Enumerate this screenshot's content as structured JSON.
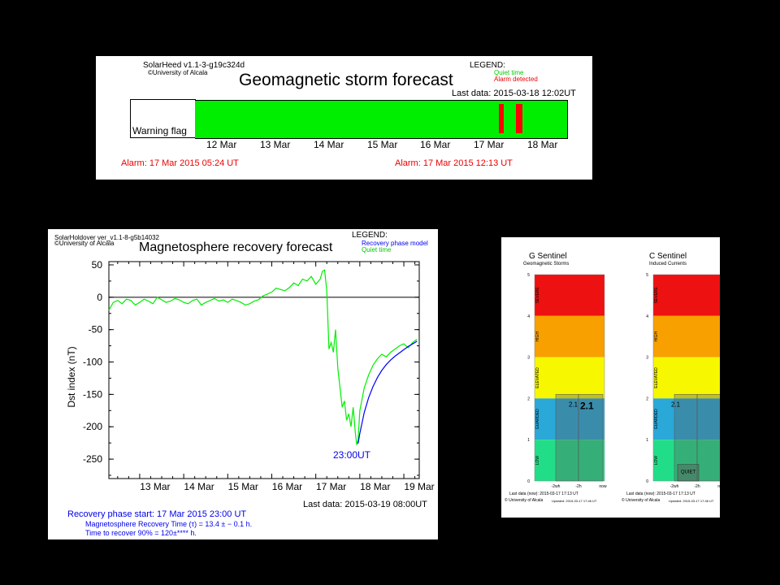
{
  "panel1": {
    "software": "SolarHeed v1.1-3-g19c324d",
    "copyright": "©University of Alcala",
    "title": "Geomagnetic storm forecast",
    "legend_title": "LEGEND:",
    "legend_quiet": "Quiet time",
    "legend_alarm": "Alarm detected",
    "last_data": "Last data: 2015-03-18 12:02UT",
    "row_label": "Warning flag",
    "dates": [
      "12 Mar",
      "13 Mar",
      "14 Mar",
      "15 Mar",
      "16 Mar",
      "17 Mar",
      "18 Mar"
    ],
    "alarm1": "Alarm: 17 Mar 2015 05:24 UT",
    "alarm2": "Alarm: 17 Mar 2015 12:13 UT",
    "colors": {
      "quiet": "#00ee00",
      "alarm": "#ff0000"
    },
    "alarm_times_day": [
      17.22,
      17.51
    ]
  },
  "panel2": {
    "software": "SolarHoldover ver_v1.1-8-g5b14032",
    "copyright": "©University of Alcala",
    "title": "Magnetosphere recovery forecast",
    "legend_title": "LEGEND:",
    "legend_model": "Recovery phase model",
    "legend_quiet": "Quiet time",
    "min_label": "23:00UT",
    "last_data": "Last data: 2015-03-19 08:00UT",
    "info1": "Recovery phase start: 17 Mar 2015 23:00 UT",
    "info2": "Magnetosphere Recovery Time (τ) = 13.4 ± − 0.1 h.",
    "info3": "Time to recover 90% = 120±**** h.",
    "colors": {
      "observed": "#00ee00",
      "model": "#0000ff"
    }
  },
  "chart_data": {
    "type": "line",
    "title": "Magnetosphere recovery forecast",
    "xlabel": "",
    "ylabel": "Dst index (nT)",
    "xlim": [
      12.3,
      19.35
    ],
    "ylim": [
      -280,
      55
    ],
    "yticks": [
      50,
      0,
      -50,
      -100,
      -150,
      -200,
      -250
    ],
    "xticks": [
      "13 Mar",
      "14 Mar",
      "15 Mar",
      "16 Mar",
      "17 Mar",
      "18 Mar",
      "19 Mar"
    ],
    "xtick_values": [
      13,
      14,
      15,
      16,
      17,
      18,
      19
    ],
    "grid": false,
    "series": [
      {
        "color": "#00ee00",
        "x": [
          12.3,
          12.4,
          12.5,
          12.6,
          12.7,
          12.8,
          12.9,
          13.0,
          13.1,
          13.2,
          13.3,
          13.4,
          13.5,
          13.6,
          13.7,
          13.8,
          13.9,
          14.0,
          14.1,
          14.2,
          14.3,
          14.4,
          14.5,
          14.6,
          14.7,
          14.8,
          14.9,
          15.0,
          15.1,
          15.2,
          15.3,
          15.4,
          15.5,
          15.6,
          15.7,
          15.8,
          15.9,
          16.0,
          16.1,
          16.2,
          16.3,
          16.4,
          16.5,
          16.6,
          16.7,
          16.8,
          16.9,
          17.0,
          17.1,
          17.15,
          17.2,
          17.25,
          17.3,
          17.35,
          17.4,
          17.45,
          17.5,
          17.55,
          17.6,
          17.65,
          17.7,
          17.75,
          17.8,
          17.85,
          17.9,
          17.93,
          17.96,
          18.0,
          18.1,
          18.2,
          18.3,
          18.4,
          18.5,
          18.6,
          18.7,
          18.8,
          18.9,
          19.0,
          19.1,
          19.2,
          19.3
        ],
        "y": [
          -20,
          -8,
          -5,
          -10,
          -3,
          -5,
          -12,
          -8,
          -3,
          -6,
          -10,
          0,
          -4,
          -8,
          -6,
          -2,
          -4,
          -8,
          -10,
          -5,
          -3,
          -12,
          -8,
          -5,
          -2,
          -6,
          -4,
          -8,
          -3,
          -5,
          -8,
          -12,
          -10,
          -6,
          -4,
          2,
          5,
          8,
          14,
          12,
          10,
          15,
          22,
          18,
          28,
          25,
          32,
          20,
          28,
          40,
          42,
          10,
          -80,
          -70,
          -85,
          -50,
          -110,
          -140,
          -170,
          -160,
          -190,
          -180,
          -200,
          -170,
          -210,
          -228,
          -220,
          -175,
          -140,
          -120,
          -105,
          -95,
          -88,
          -92,
          -85,
          -80,
          -75,
          -72,
          -78,
          -70,
          -65
        ]
      },
      {
        "color": "#0000ff",
        "x": [
          17.96,
          18.0,
          18.1,
          18.2,
          18.3,
          18.4,
          18.5,
          18.6,
          18.7,
          18.8,
          18.9,
          19.0,
          19.1,
          19.2,
          19.3
        ],
        "y": [
          -226,
          -210,
          -178,
          -155,
          -138,
          -124,
          -113,
          -104,
          -97,
          -91,
          -86,
          -81,
          -76,
          -72,
          -68
        ]
      }
    ]
  },
  "panel3": {
    "g_title": "G Sentinel",
    "g_subtitle": "Geomagnetic Storms",
    "c_title": "C Sentinel",
    "c_subtitle": "Induced Currents",
    "levels": [
      "SEVERE",
      "HIGH",
      "ELEVATED",
      "GUARDED",
      "LOW"
    ],
    "level_colors": [
      "#ee1111",
      "#f7a000",
      "#f7f700",
      "#2aa8d8",
      "#22dd88"
    ],
    "y_ticks": [
      "5",
      "4",
      "3",
      "2",
      "1",
      "0"
    ],
    "x_ticks": [
      "-2wh",
      "-2h",
      "now"
    ],
    "g_values": {
      "left": "2.1",
      "right": "2.1"
    },
    "c_values": {
      "left": "2.1",
      "quiet": "QUIET"
    },
    "footer_left1": "Last data (now): 2015-03-17 17:13 UT",
    "footer_left2": "© University of Alcala",
    "footer_left_small": "Updated: 2015-03-17 17:46 UT",
    "footer_right1": "Last data (now): 2015-03-17 17:13 UT",
    "footer_right2": "© University of Alcala",
    "footer_right_small": "Updated: 2015-03-17 17:46 UT"
  }
}
